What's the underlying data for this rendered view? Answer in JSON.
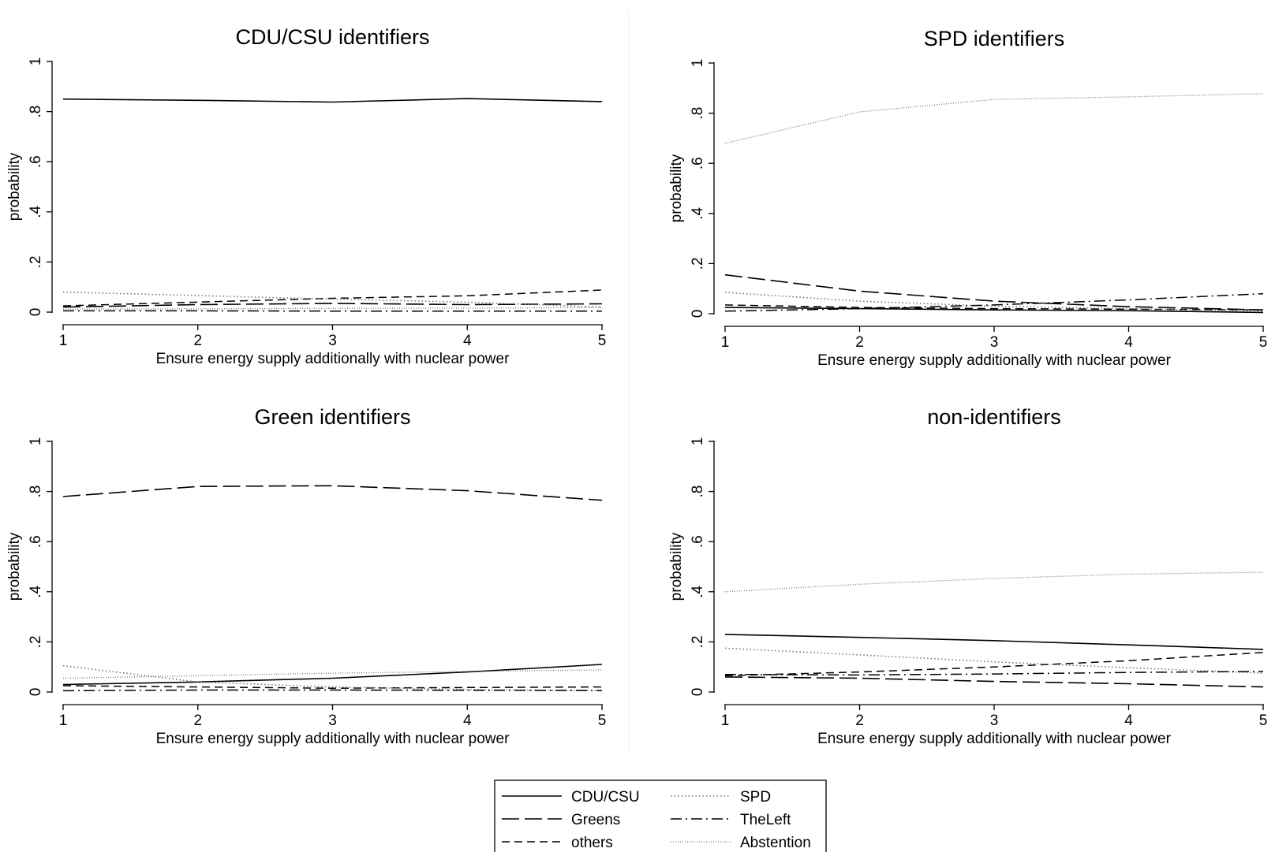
{
  "chart_data": [
    {
      "type": "line",
      "title": "CDU/CSU identifiers",
      "xlabel": "Ensure energy supply additionally with nuclear power",
      "ylabel": "probability",
      "xlim": [
        1,
        5
      ],
      "ylim": [
        0,
        1
      ],
      "x": [
        1,
        2,
        3,
        4,
        5
      ],
      "series": [
        {
          "name": "CDU/CSU",
          "values": [
            0.85,
            0.845,
            0.838,
            0.852,
            0.84
          ]
        },
        {
          "name": "Greens",
          "values": [
            0.02,
            0.03,
            0.035,
            0.03,
            0.033
          ]
        },
        {
          "name": "others",
          "values": [
            0.025,
            0.04,
            0.055,
            0.065,
            0.088
          ]
        },
        {
          "name": "SPD",
          "values": [
            0.08,
            0.066,
            0.052,
            0.04,
            0.02
          ]
        },
        {
          "name": "TheLeft",
          "values": [
            0.005,
            0.005,
            0.004,
            0.004,
            0.004
          ]
        },
        {
          "name": "Abstention",
          "values": [
            0.012,
            0.013,
            0.015,
            0.016,
            0.018
          ]
        }
      ]
    },
    {
      "type": "line",
      "title": "SPD identifiers",
      "xlabel": "Ensure energy supply additionally with nuclear power",
      "ylabel": "probability",
      "xlim": [
        1,
        5
      ],
      "ylim": [
        0,
        1
      ],
      "x": [
        1,
        2,
        3,
        4,
        5
      ],
      "series": [
        {
          "name": "CDU/CSU",
          "values": [
            0.025,
            0.02,
            0.015,
            0.012,
            0.005
          ]
        },
        {
          "name": "Greens",
          "values": [
            0.155,
            0.09,
            0.05,
            0.028,
            0.015
          ]
        },
        {
          "name": "others",
          "values": [
            0.035,
            0.025,
            0.02,
            0.018,
            0.015
          ]
        },
        {
          "name": "SPD",
          "values": [
            0.085,
            0.05,
            0.03,
            0.02,
            0.01
          ]
        },
        {
          "name": "TheLeft",
          "values": [
            0.01,
            0.02,
            0.035,
            0.055,
            0.08
          ]
        },
        {
          "name": "Abstention",
          "values": [
            0.68,
            0.805,
            0.855,
            0.865,
            0.878
          ]
        }
      ]
    },
    {
      "type": "line",
      "title": "Green identifiers",
      "xlabel": "Ensure energy supply additionally with nuclear power",
      "ylabel": "probability",
      "xlim": [
        1,
        5
      ],
      "ylim": [
        0,
        1
      ],
      "x": [
        1,
        2,
        3,
        4,
        5
      ],
      "series": [
        {
          "name": "CDU/CSU",
          "values": [
            0.03,
            0.04,
            0.055,
            0.08,
            0.11
          ]
        },
        {
          "name": "Greens",
          "values": [
            0.78,
            0.82,
            0.823,
            0.803,
            0.765
          ]
        },
        {
          "name": "others",
          "values": [
            0.025,
            0.02,
            0.015,
            0.018,
            0.02
          ]
        },
        {
          "name": "SPD",
          "values": [
            0.105,
            0.04,
            0.02,
            0.01,
            0.005
          ]
        },
        {
          "name": "TheLeft",
          "values": [
            0.005,
            0.008,
            0.008,
            0.007,
            0.006
          ]
        },
        {
          "name": "Abstention",
          "values": [
            0.055,
            0.065,
            0.075,
            0.082,
            0.088
          ]
        }
      ]
    },
    {
      "type": "line",
      "title": "non-identifiers",
      "xlabel": "Ensure energy supply additionally with nuclear power",
      "ylabel": "probability",
      "xlim": [
        1,
        5
      ],
      "ylim": [
        0,
        1
      ],
      "x": [
        1,
        2,
        3,
        4,
        5
      ],
      "series": [
        {
          "name": "CDU/CSU",
          "values": [
            0.23,
            0.218,
            0.205,
            0.188,
            0.17
          ]
        },
        {
          "name": "Greens",
          "values": [
            0.06,
            0.055,
            0.042,
            0.033,
            0.02
          ]
        },
        {
          "name": "others",
          "values": [
            0.065,
            0.08,
            0.1,
            0.125,
            0.158
          ]
        },
        {
          "name": "SPD",
          "values": [
            0.175,
            0.148,
            0.12,
            0.097,
            0.075
          ]
        },
        {
          "name": "TheLeft",
          "values": [
            0.07,
            0.068,
            0.072,
            0.078,
            0.082
          ]
        },
        {
          "name": "Abstention",
          "values": [
            0.4,
            0.43,
            0.453,
            0.47,
            0.478
          ]
        }
      ]
    }
  ],
  "axis": {
    "x_ticks": [
      "1",
      "2",
      "3",
      "4",
      "5"
    ],
    "y_ticks": [
      "0",
      ".2",
      ".4",
      ".6",
      ".8",
      "1"
    ]
  },
  "legend": {
    "entries": [
      "CDU/CSU",
      "SPD",
      "Greens",
      "TheLeft",
      "others",
      "Abstention"
    ]
  },
  "series_styles": {
    "CDU/CSU": {
      "color": "#000000",
      "dash": "solid"
    },
    "Greens": {
      "color": "#000000",
      "dash": "long-dash"
    },
    "others": {
      "color": "#000000",
      "dash": "dash"
    },
    "SPD": {
      "color": "#777777",
      "dash": "dot"
    },
    "TheLeft": {
      "color": "#000000",
      "dash": "dash-dot"
    },
    "Abstention": {
      "color": "#777777",
      "dash": "fine-dot"
    }
  }
}
